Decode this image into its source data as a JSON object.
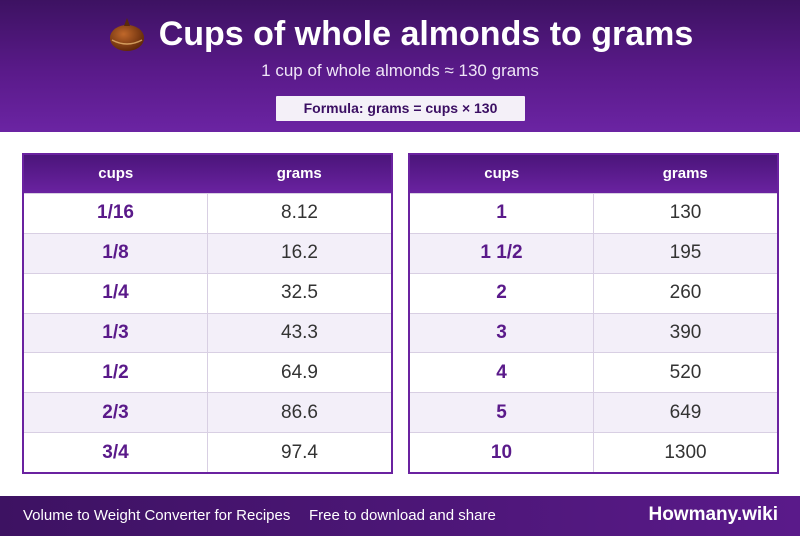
{
  "header": {
    "title": "Cups of whole almonds to grams",
    "subtitle": "1 cup of whole almonds ≈ 130 grams",
    "formula": "Formula: grams = cups × 130",
    "icon": "almond-icon"
  },
  "tables": {
    "left": {
      "headers": [
        "cups",
        "grams"
      ],
      "rows": [
        [
          "1/16",
          "8.12"
        ],
        [
          "1/8",
          "16.2"
        ],
        [
          "1/4",
          "32.5"
        ],
        [
          "1/3",
          "43.3"
        ],
        [
          "1/2",
          "64.9"
        ],
        [
          "2/3",
          "86.6"
        ],
        [
          "3/4",
          "97.4"
        ]
      ]
    },
    "right": {
      "headers": [
        "cups",
        "grams"
      ],
      "rows": [
        [
          "1",
          "130"
        ],
        [
          "1 1/2",
          "195"
        ],
        [
          "2",
          "260"
        ],
        [
          "3",
          "390"
        ],
        [
          "4",
          "520"
        ],
        [
          "5",
          "649"
        ],
        [
          "10",
          "1300"
        ]
      ]
    }
  },
  "footer": {
    "left_text": "Volume to Weight Converter for Recipes",
    "middle_text": "Free to download and share",
    "brand": "Howmany.wiki"
  },
  "colors": {
    "primary": "#5a1a8a",
    "header_dark": "#3d1262",
    "row_alt": "#f3eff9"
  }
}
